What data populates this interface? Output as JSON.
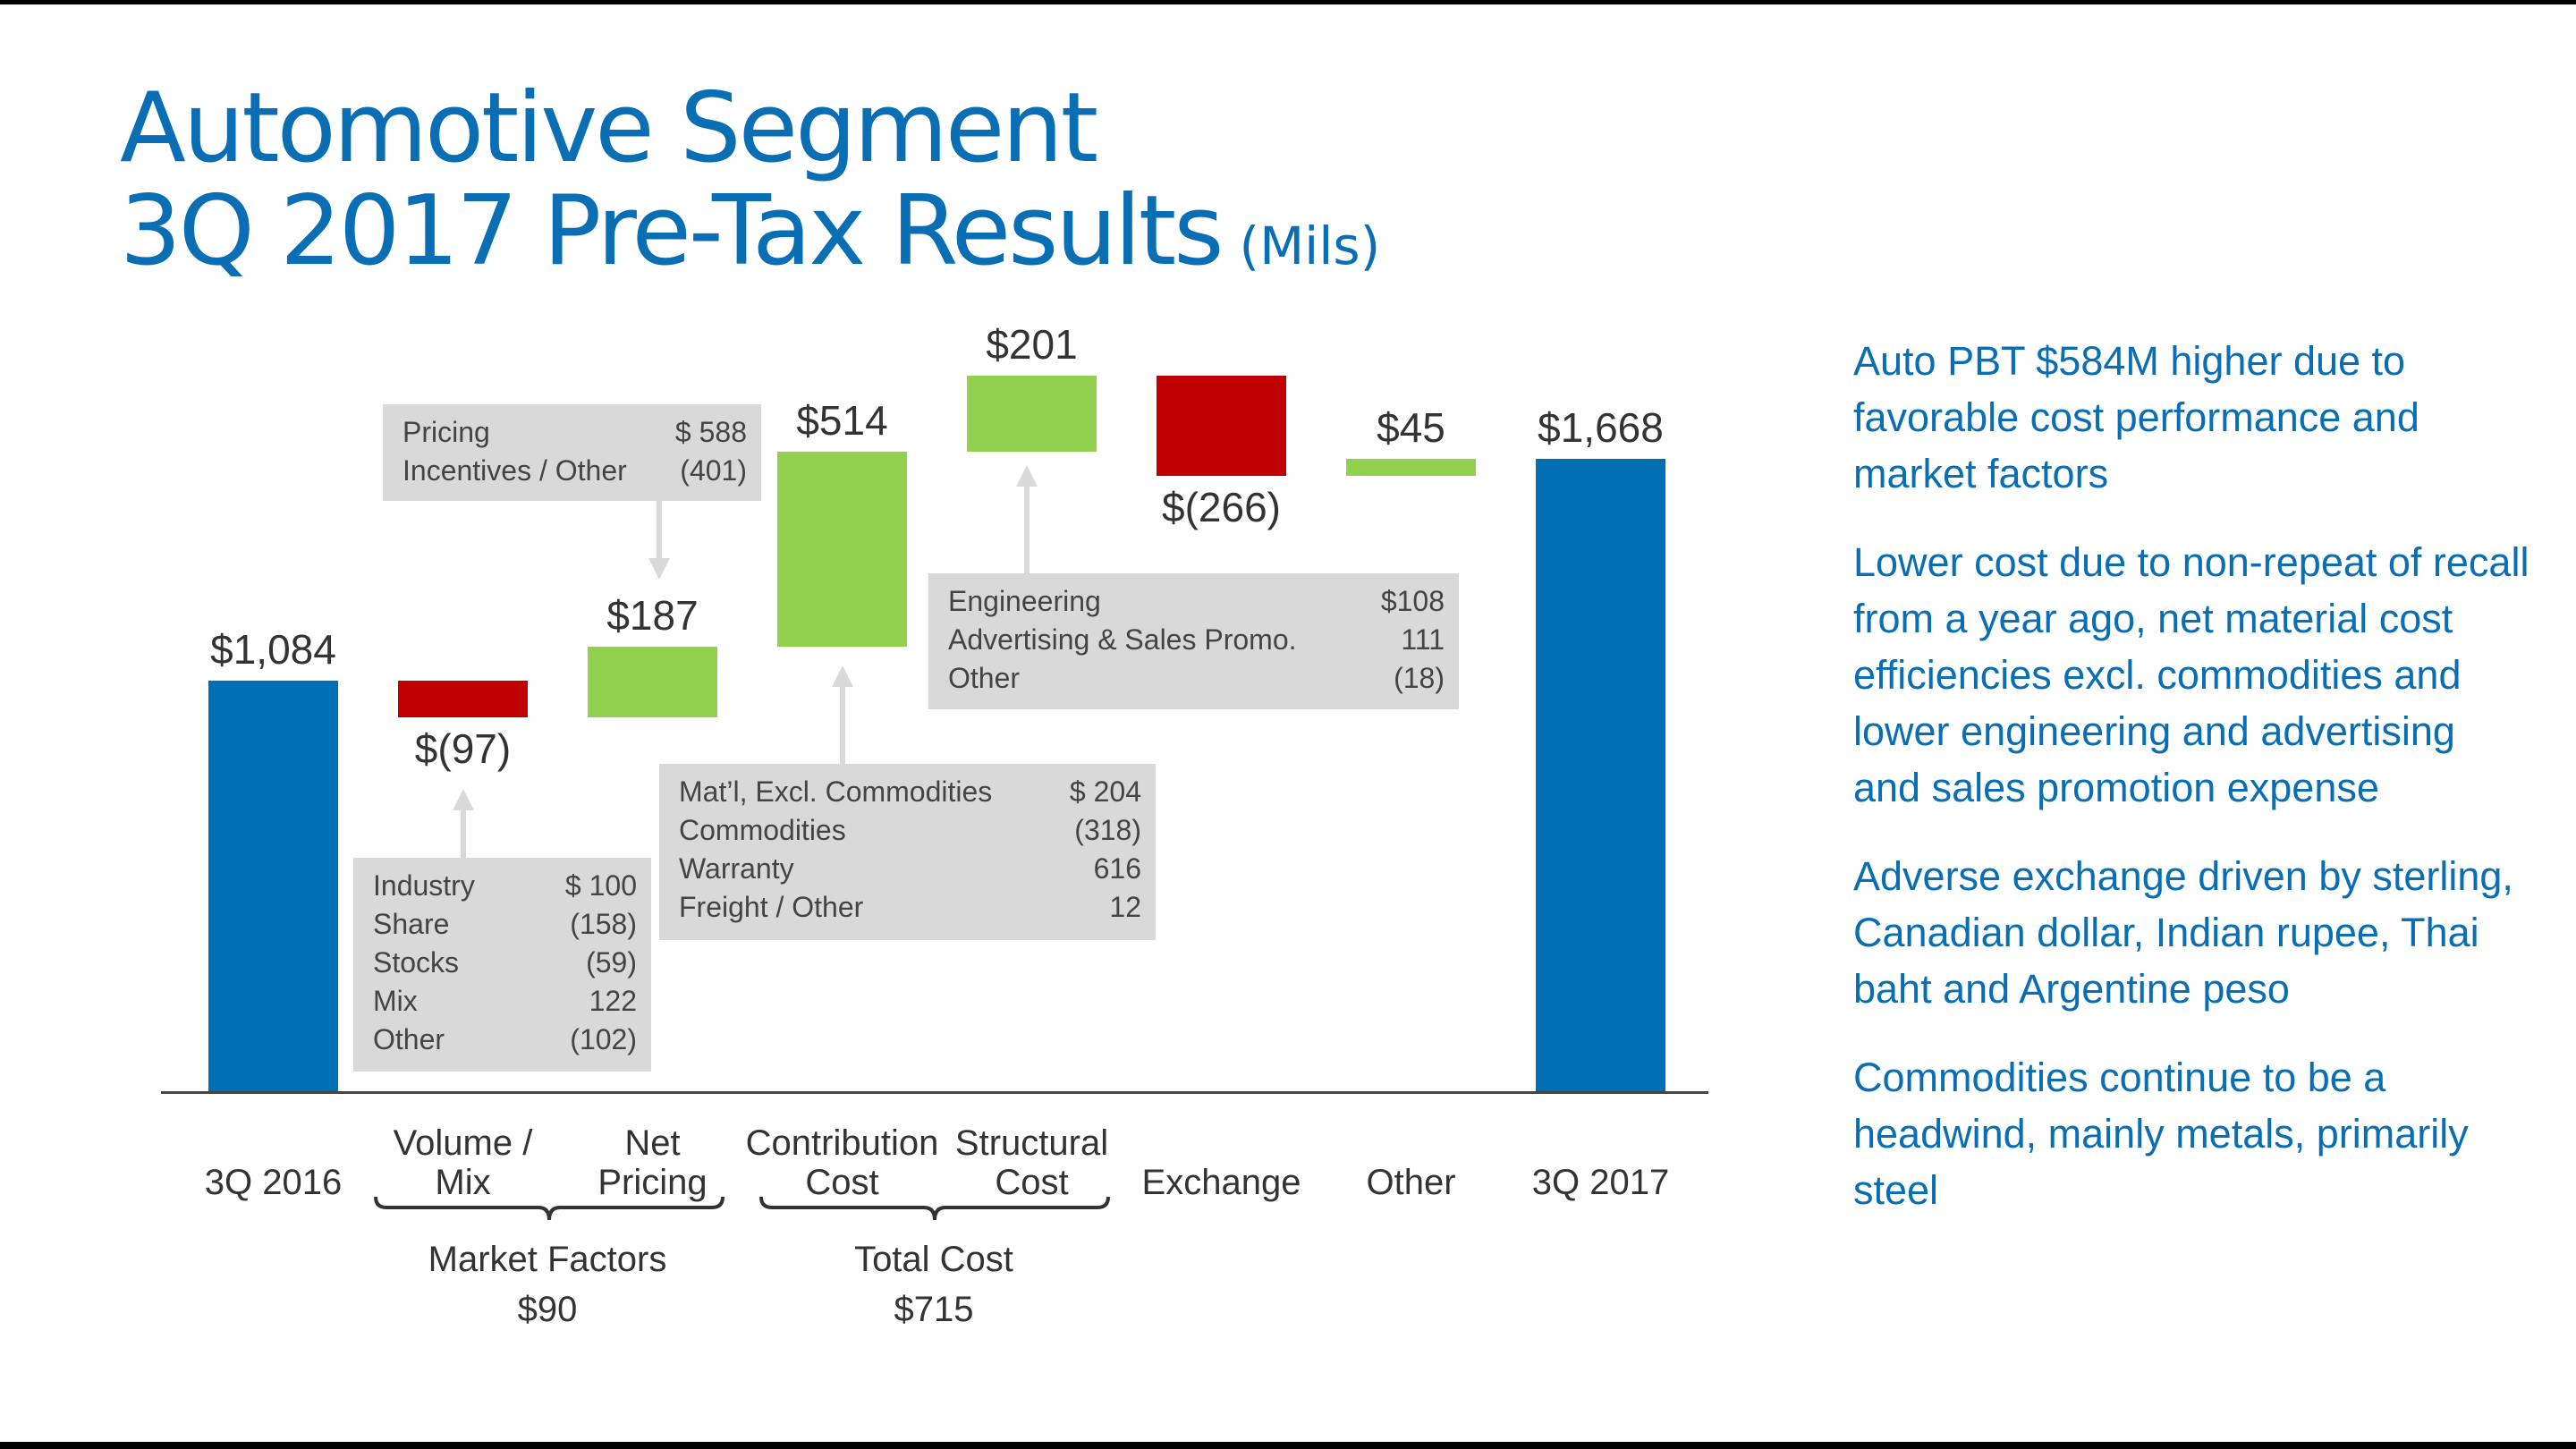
{
  "title": {
    "line1": "Automotive Segment",
    "line2": "3Q 2017 Pre-Tax Results",
    "units": "(Mils)"
  },
  "colors": {
    "total": "#0070b4",
    "increase": "#92d050",
    "decrease": "#c00000",
    "title": "#0a6eb4"
  },
  "chart_data": {
    "type": "waterfall",
    "categories": [
      "3Q 2016",
      "Volume / Mix",
      "Net Pricing",
      "Contribution Cost",
      "Structural Cost",
      "Exchange",
      "Other",
      "3Q 2017"
    ],
    "category_lines": [
      [
        "3Q 2016"
      ],
      [
        "Volume /",
        "Mix"
      ],
      [
        "Net",
        "Pricing"
      ],
      [
        "Contribution",
        "Cost"
      ],
      [
        "Structural",
        "Cost"
      ],
      [
        "Exchange"
      ],
      [
        "Other"
      ],
      [
        "3Q 2017"
      ]
    ],
    "values": [
      1084,
      -97,
      187,
      514,
      201,
      -266,
      45,
      1668
    ],
    "kinds": [
      "total",
      "delta",
      "delta",
      "delta",
      "delta",
      "delta",
      "delta",
      "total"
    ],
    "data_labels": [
      "$1,084",
      "$(97)",
      "$187",
      "$514",
      "$201",
      "$(266)",
      "$45",
      "$1,668"
    ],
    "groups": [
      {
        "name": "Market Factors",
        "value": "$90"
      },
      {
        "name": "Total Cost",
        "value": "$715"
      }
    ]
  },
  "callouts": {
    "pricing": [
      [
        "Pricing",
        "$ 588"
      ],
      [
        "Incentives / Other",
        "(401)"
      ]
    ],
    "volume": [
      [
        "Industry",
        "$ 100"
      ],
      [
        "Share",
        "(158)"
      ],
      [
        "Stocks",
        "(59)"
      ],
      [
        "Mix",
        "122"
      ],
      [
        "Other",
        "(102)"
      ]
    ],
    "contribution": [
      [
        "Mat’l, Excl. Commodities",
        "$ 204"
      ],
      [
        "Commodities",
        "(318)"
      ],
      [
        "Warranty",
        "616"
      ],
      [
        "Freight / Other",
        "12"
      ]
    ],
    "structural": [
      [
        "Engineering",
        "$108"
      ],
      [
        "Advertising & Sales Promo.",
        "111"
      ],
      [
        "Other",
        "(18)"
      ]
    ]
  },
  "bullets": [
    "Auto PBT $584M higher due to favorable cost performance and market factors",
    "Lower cost due to non-repeat of recall from a year ago, net material cost efficiencies excl. commodities and lower engineering and advertising and sales promotion expense",
    "Adverse exchange driven by sterling, Canadian dollar, Indian rupee, Thai baht and Argentine peso",
    "Commodities continue to be a headwind, mainly metals, primarily steel"
  ]
}
